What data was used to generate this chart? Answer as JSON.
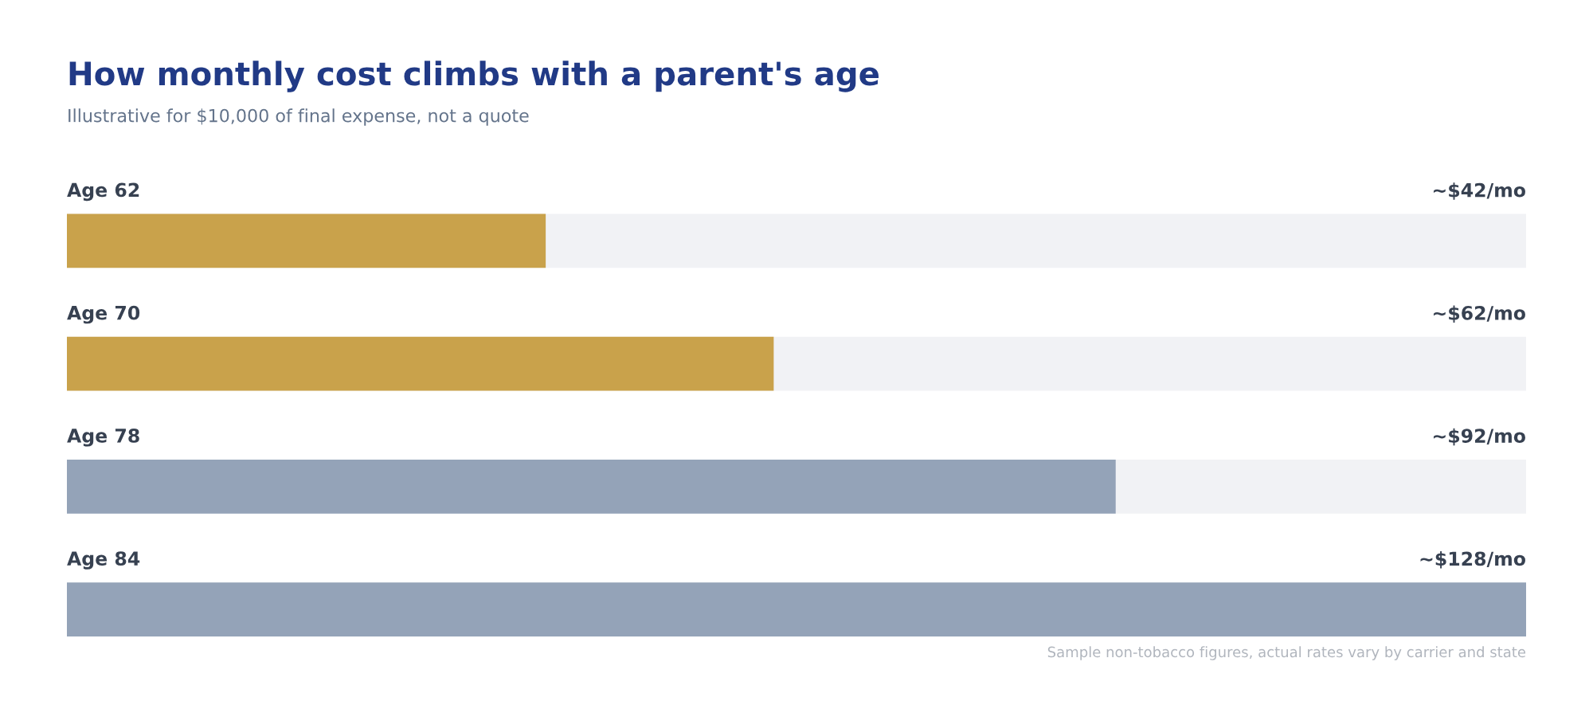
{
  "chart_data": {
    "type": "bar",
    "orientation": "horizontal",
    "title": "How monthly cost climbs with a parent's age",
    "subtitle": "Illustrative for $10,000 of final expense, not a quote",
    "categories": [
      "Age 62",
      "Age 70",
      "Age 78",
      "Age 84"
    ],
    "values": [
      42,
      62,
      92,
      128
    ],
    "colors": [
      "#c9a24b",
      "#c9a24b",
      "#94a3b8",
      "#94a3b8"
    ],
    "value_labels": [
      "~$42/mo",
      "~$62/mo",
      "~$92/mo",
      "~$128/mo"
    ],
    "xlim": [
      0,
      128
    ],
    "annotations": [
      "Sample non-tobacco figures, actual rates vary by carrier and state"
    ],
    "legend": false
  }
}
